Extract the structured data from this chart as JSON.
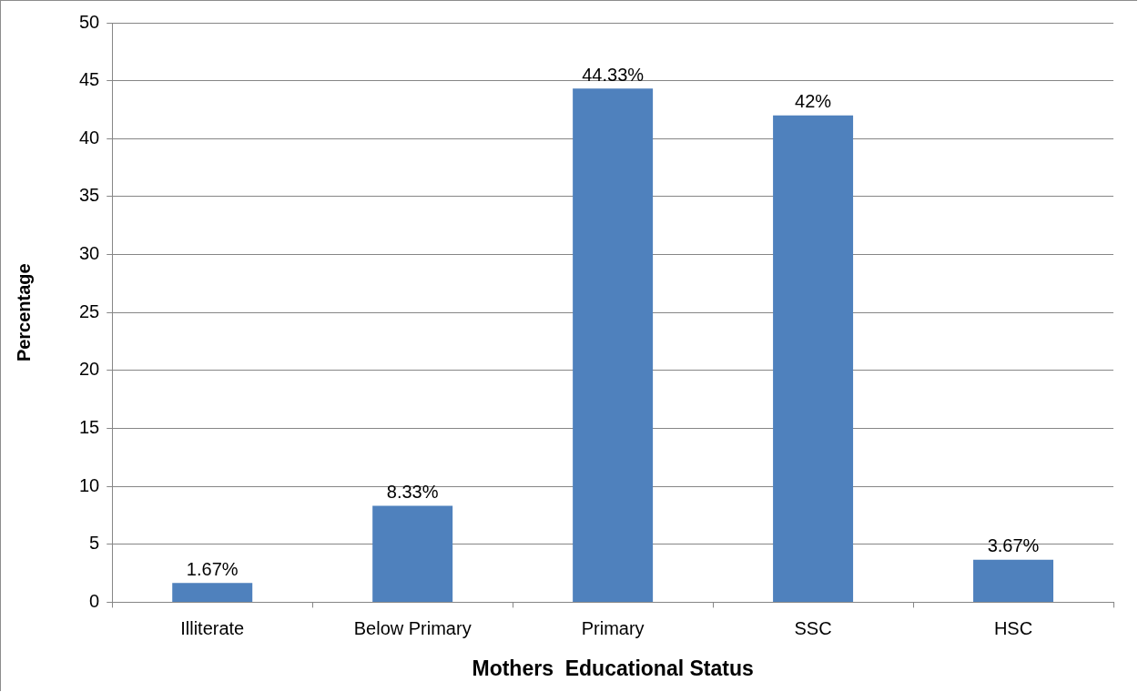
{
  "chart_data": {
    "type": "bar",
    "xlabel": "Mothers  Educational Status",
    "ylabel": "Percentage",
    "categories": [
      "Illiterate",
      "Below Primary",
      "Primary",
      "SSC",
      "HSC"
    ],
    "values": [
      1.67,
      8.33,
      44.33,
      42,
      3.67
    ],
    "value_labels": [
      "1.67%",
      "8.33%",
      "44.33%",
      "42%",
      "3.67%"
    ],
    "color": "#4f81bd",
    "ylim": [
      0,
      50
    ],
    "yticks": [
      0,
      5,
      10,
      15,
      20,
      25,
      30,
      35,
      40,
      45,
      50
    ],
    "grid": "y",
    "legend": false
  }
}
